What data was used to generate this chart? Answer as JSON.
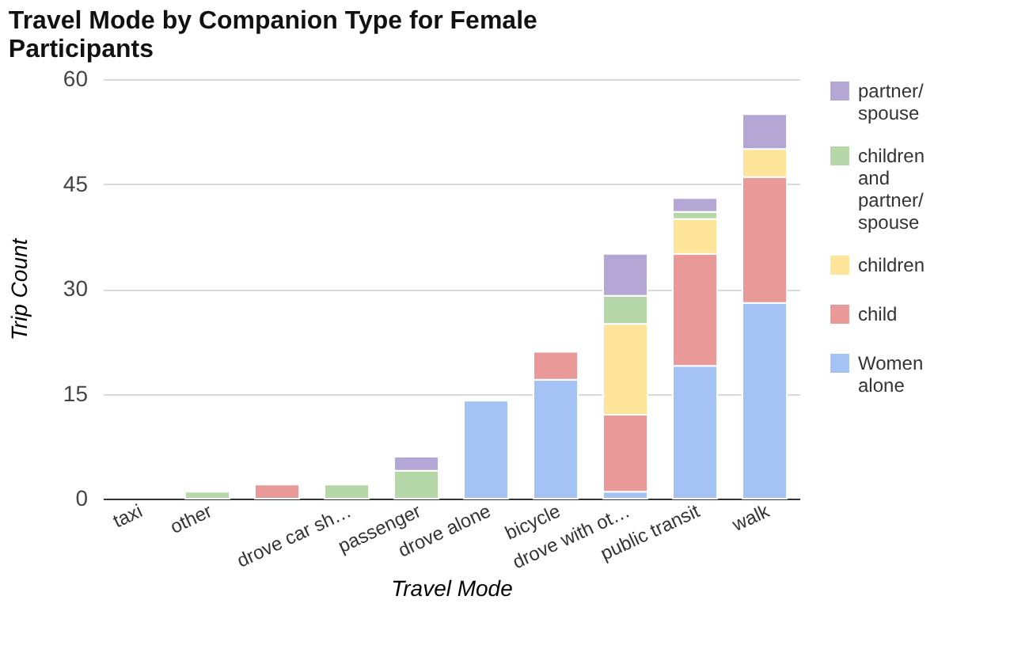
{
  "chart_data": {
    "type": "bar",
    "title": "Travel Mode by Companion Type for Female Participants",
    "xlabel": "Travel Mode",
    "ylabel": "Trip Count",
    "categories": [
      "taxi",
      "other",
      null,
      "drove car sh…",
      "passenger",
      "drove alone",
      "bicycle",
      "drove with ot…",
      "public transit",
      "walk"
    ],
    "stacked": true,
    "ylim": [
      0,
      60
    ],
    "yticks": [
      0,
      15,
      30,
      45,
      60
    ],
    "grid": "y",
    "legend": "right",
    "series": [
      {
        "name": "Women alone",
        "color": "#a4c2f4",
        "values": [
          null,
          null,
          null,
          null,
          null,
          14,
          17,
          1,
          19,
          28
        ]
      },
      {
        "name": "child",
        "color": "#ea9999",
        "values": [
          null,
          null,
          2,
          null,
          null,
          null,
          4,
          11,
          16,
          18
        ]
      },
      {
        "name": "children",
        "color": "#ffe599",
        "values": [
          null,
          null,
          null,
          null,
          null,
          null,
          null,
          13,
          5,
          4
        ]
      },
      {
        "name": "children and partner/spouse",
        "color": "#b6d7a8",
        "values": [
          null,
          1,
          null,
          2,
          4,
          null,
          null,
          4,
          1,
          null
        ]
      },
      {
        "name": "partner/spouse",
        "color": "#b4a7d6",
        "values": [
          null,
          null,
          null,
          null,
          2,
          null,
          null,
          6,
          2,
          5
        ]
      }
    ]
  }
}
